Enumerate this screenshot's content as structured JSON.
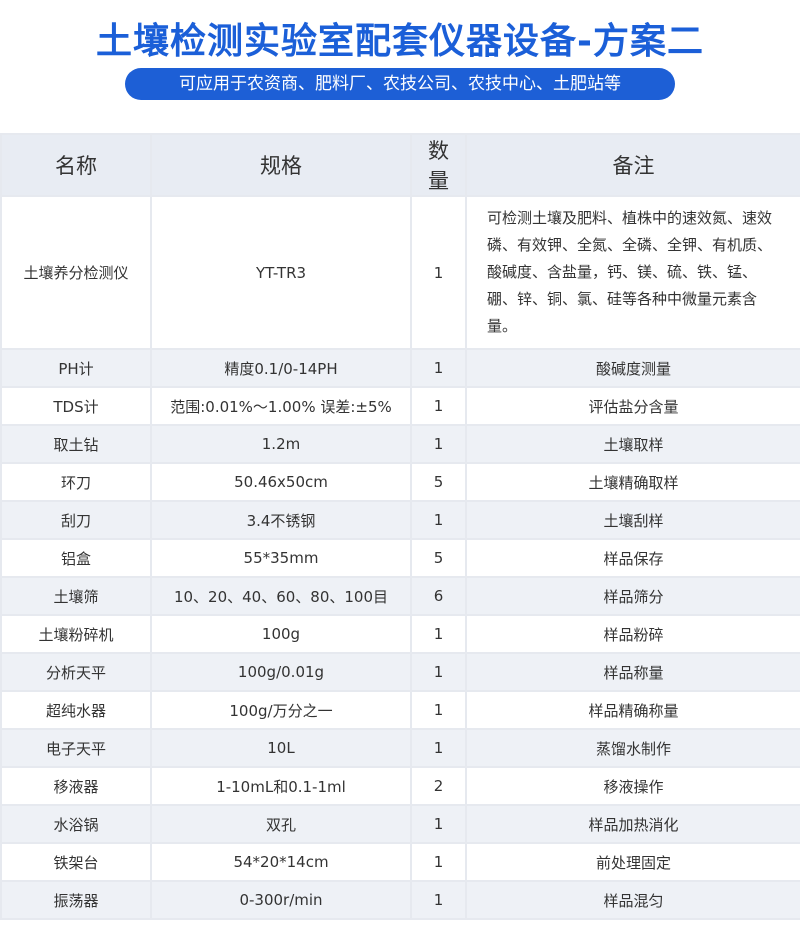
{
  "header": {
    "title": "土壤检测实验室配套仪器设备-方案二",
    "subtitle": "可应用于农资商、肥料厂、农技公司、农技中心、土肥站等"
  },
  "table": {
    "columns": [
      "名称",
      "规格",
      "数量",
      "备注"
    ],
    "rows": [
      [
        "土壤养分检测仪",
        "YT-TR3",
        "1",
        "可检测土壤及肥料、植株中的速效氮、速效磷、有效钾、全氮、全磷、全钾、有机质、酸碱度、含盐量，钙、镁、硫、铁、锰、硼、锌、铜、氯、硅等各种中微量元素含量。"
      ],
      [
        "PH计",
        "精度0.1/0-14PH",
        "1",
        "酸碱度测量"
      ],
      [
        "TDS计",
        "范围:0.01%～1.00% 误差:±5%",
        "1",
        "评估盐分含量"
      ],
      [
        "取土钻",
        "1.2m",
        "1",
        "土壤取样"
      ],
      [
        "环刀",
        "50.46x50cm",
        "5",
        "土壤精确取样"
      ],
      [
        "刮刀",
        "3.4不锈钢",
        "1",
        "土壤刮样"
      ],
      [
        "铝盒",
        "55*35mm",
        "5",
        "样品保存"
      ],
      [
        "土壤筛",
        "10、20、40、60、80、100目",
        "6",
        "样品筛分"
      ],
      [
        "土壤粉碎机",
        "100g",
        "1",
        "样品粉碎"
      ],
      [
        "分析天平",
        "100g/0.01g",
        "1",
        "样品称量"
      ],
      [
        "超纯水器",
        "100g/万分之一",
        "1",
        "样品精确称量"
      ],
      [
        "电子天平",
        "10L",
        "1",
        "蒸馏水制作"
      ],
      [
        "移液器",
        "1-10mL和0.1-1ml",
        "2",
        "移液操作"
      ],
      [
        "水浴锅",
        "双孔",
        "1",
        "样品加热消化"
      ],
      [
        "铁架台",
        "54*20*14cm",
        "1",
        "前处理固定"
      ],
      [
        "振荡器",
        "0-300r/min",
        "1",
        "样品混匀"
      ]
    ]
  }
}
